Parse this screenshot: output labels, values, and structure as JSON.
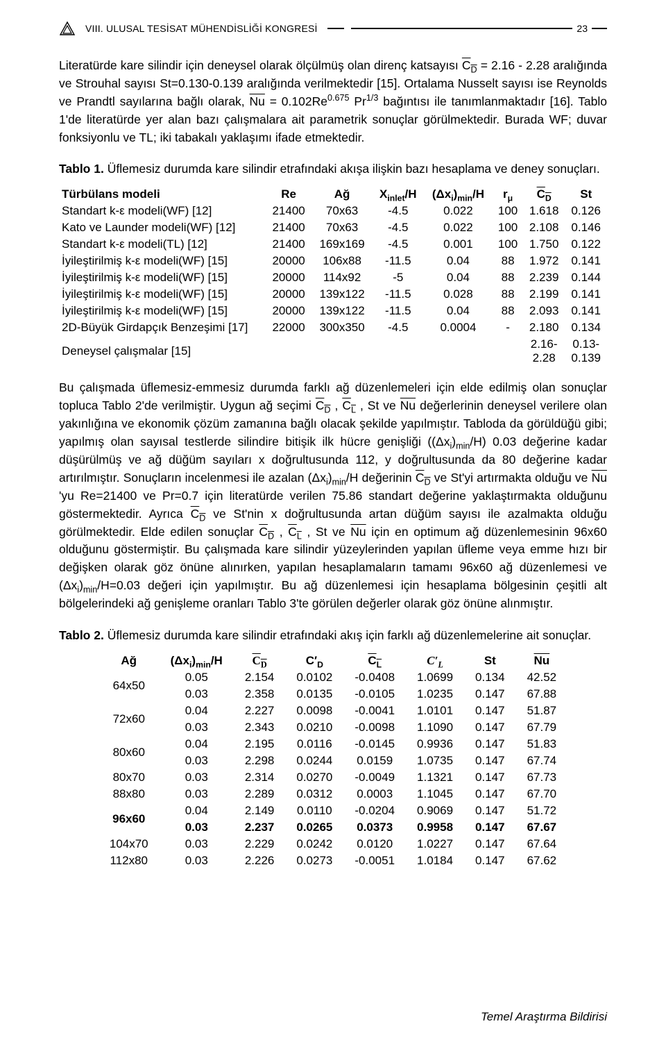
{
  "header": {
    "title": "VIII. ULUSAL TESİSAT MÜHENDİSLİĞİ KONGRESİ",
    "page_number": "23"
  },
  "para1_parts": {
    "a": "Literatürde kare silindir için deneysel olarak ölçülmüş olan direnç katsayısı ",
    "cd": "C",
    "cd_sub": "D",
    "b": " = 2.16 - 2.28 aralığında ve Strouhal sayısı St=0.130-0.139 aralığında verilmektedir [15]. Ortalama Nusselt sayısı ise Reynolds ve Prandtl sayılarına bağlı olarak, ",
    "nu": "Nu",
    "c": " = 0.102Re",
    "exp1": "0.675",
    "pr": " Pr",
    "exp2": "1/3",
    "d": " bağıntısı ile tanımlanmaktadır [16]. Tablo 1'de literatürde yer alan bazı çalışmalara ait parametrik sonuçlar görülmektedir. Burada WF; duvar fonksiyonlu ve TL; iki tabakalı yaklaşımı ifade etmektedir."
  },
  "table1": {
    "caption_bold": "Tablo 1.",
    "caption_rest": " Üflemesiz durumda kare silindir etrafındaki akışa ilişkin bazı hesaplama ve deney sonuçları.",
    "columns": {
      "model": "Türbülans modeli",
      "re": "Re",
      "ag": "Ağ",
      "xinlet_a": "X",
      "xinlet_sub": "inlet",
      "xinlet_b": "/H",
      "dx_a": "(Δx",
      "dx_sub": "i",
      "dx_b": ")",
      "dx_sub2": "min",
      "dx_c": "/H",
      "rmu_a": "r",
      "rmu_sub": "μ",
      "cd_a": "C",
      "cd_sub": "D",
      "st": "St"
    },
    "rows": [
      {
        "m": "Standart k-ε modeli(WF) [12]",
        "re": "21400",
        "ag": "70x63",
        "xin": "-4.5",
        "dx": "0.022",
        "rmu": "100",
        "cd": "1.618",
        "st": "0.126"
      },
      {
        "m": "Kato ve Launder modeli(WF) [12]",
        "re": "21400",
        "ag": "70x63",
        "xin": "-4.5",
        "dx": "0.022",
        "rmu": "100",
        "cd": "2.108",
        "st": "0.146"
      },
      {
        "m": "Standart k-ε modeli(TL) [12]",
        "re": "21400",
        "ag": "169x169",
        "xin": "-4.5",
        "dx": "0.001",
        "rmu": "100",
        "cd": "1.750",
        "st": "0.122"
      },
      {
        "m": "İyileştirilmiş k-ε modeli(WF) [15]",
        "re": "20000",
        "ag": "106x88",
        "xin": "-11.5",
        "dx": "0.04",
        "rmu": "88",
        "cd": "1.972",
        "st": "0.141"
      },
      {
        "m": "İyileştirilmiş k-ε modeli(WF) [15]",
        "re": "20000",
        "ag": "114x92",
        "xin": "-5",
        "dx": "0.04",
        "rmu": "88",
        "cd": "2.239",
        "st": "0.144"
      },
      {
        "m": "İyileştirilmiş k-ε modeli(WF) [15]",
        "re": "20000",
        "ag": "139x122",
        "xin": "-11.5",
        "dx": "0.028",
        "rmu": "88",
        "cd": "2.199",
        "st": "0.141"
      },
      {
        "m": "İyileştirilmiş k-ε modeli(WF) [15]",
        "re": "20000",
        "ag": "139x122",
        "xin": "-11.5",
        "dx": "0.04",
        "rmu": "88",
        "cd": "2.093",
        "st": "0.141"
      },
      {
        "m": "2D-Büyük Girdapçık Benzeşimi [17]",
        "re": "22000",
        "ag": "300x350",
        "xin": "-4.5",
        "dx": "0.0004",
        "rmu": "-",
        "cd": "2.180",
        "st": "0.134"
      },
      {
        "m": "Deneysel çalışmalar [15]",
        "re": "",
        "ag": "",
        "xin": "",
        "dx": "",
        "rmu": "",
        "cd": "2.16-\n2.28",
        "st": "0.13-\n0.139"
      }
    ]
  },
  "para2_parts": {
    "a": "Bu çalışmada üflemesiz-emmesiz durumda farklı ağ düzenlemeleri için elde edilmiş olan sonuçlar topluca Tablo 2'de verilmiştir. Uygun ağ seçimi ",
    "b": " , ",
    "c": " , St ve ",
    "d": " değerlerinin deneysel verilere olan yakınlığına ve ekonomik çözüm zamanına bağlı olacak şekilde yapılmıştır. Tabloda da görüldüğü gibi; yapılmış olan sayısal testlerde silindire bitişik ilk hücre genişliği ((Δx",
    "d_sub": "i",
    "d2": ")",
    "d_sub2": "min",
    "d3": "/H) 0.03 değerine kadar düşürülmüş ve ağ düğüm sayıları x doğrultusunda 112, y doğrultusunda da 80 değerine kadar artırılmıştır. Sonuçların incelenmesi ile azalan (Δx",
    "e_sub": "i",
    "e2": ")",
    "e_sub2": "min",
    "e3": "/H değerinin ",
    "f": " ve St'yi artırmakta olduğu ve ",
    "g": " 'yu Re=21400 ve Pr=0.7 için literatürde verilen 75.86 standart değerine yaklaştırmakta olduğunu göstermektedir. Ayrıca ",
    "h": " ve St'nin x doğrultusunda artan düğüm sayısı ile azalmakta olduğu görülmektedir. Elde edilen sonuçlar ",
    "i": " , ",
    "j": " , St ve ",
    "k": " için en optimum ağ düzenlemesinin 96x60 olduğunu göstermiştir. Bu çalışmada kare silindir yüzeylerinden yapılan üfleme veya emme hızı bir değişken olarak göz önüne alınırken, yapılan hesaplamaların tamamı 96x60 ağ düzenlemesi ve (Δx",
    "k_sub": "i",
    "k2": ")",
    "k_sub2": "min",
    "k3": "/H=0.03 değeri için yapılmıştır. Bu ağ düzenlemesi için hesaplama bölgesinin çeşitli alt bölgelerindeki ağ genişleme oranları Tablo 3'te görülen değerler olarak göz önüne alınmıştır.",
    "cd": "C",
    "cd_sub": "D",
    "cl": "C",
    "cl_sub": "L",
    "nu": "Nu"
  },
  "table2": {
    "caption_bold": "Tablo 2.",
    "caption_rest": " Üflemesiz durumda kare silindir etrafındaki akış için farklı ağ düzenlemelerine ait sonuçlar.",
    "columns": {
      "ag": "Ağ",
      "dx_a": "(Δx",
      "dx_sub": "i",
      "dx_b": ")",
      "dx_sub2": "min",
      "dx_c": "/H",
      "cd": "C",
      "cd_sub": "D",
      "cdp": "C′",
      "cdp_sub": "D",
      "cl": "C",
      "cl_sub": "L",
      "clp": "C′",
      "clp_sub": "L",
      "st": "St",
      "nu": "Nu"
    },
    "rows": [
      {
        "ag": "64x50",
        "dx": "0.05",
        "cd": "2.154",
        "cdp": "0.0102",
        "cl": "-0.0408",
        "clp": "1.0699",
        "st": "0.134",
        "nu": "42.52",
        "bold": false,
        "span": 2
      },
      {
        "ag": "",
        "dx": "0.03",
        "cd": "2.358",
        "cdp": "0.0135",
        "cl": "-0.0105",
        "clp": "1.0235",
        "st": "0.147",
        "nu": "67.88",
        "bold": false,
        "span": 0
      },
      {
        "ag": "72x60",
        "dx": "0.04",
        "cd": "2.227",
        "cdp": "0.0098",
        "cl": "-0.0041",
        "clp": "1.0101",
        "st": "0.147",
        "nu": "51.87",
        "bold": false,
        "span": 2
      },
      {
        "ag": "",
        "dx": "0.03",
        "cd": "2.343",
        "cdp": "0.0210",
        "cl": "-0.0098",
        "clp": "1.1090",
        "st": "0.147",
        "nu": "67.79",
        "bold": false,
        "span": 0
      },
      {
        "ag": "80x60",
        "dx": "0.04",
        "cd": "2.195",
        "cdp": "0.0116",
        "cl": "-0.0145",
        "clp": "0.9936",
        "st": "0.147",
        "nu": "51.83",
        "bold": false,
        "span": 2
      },
      {
        "ag": "",
        "dx": "0.03",
        "cd": "2.298",
        "cdp": "0.0244",
        "cl": "0.0159",
        "clp": "1.0735",
        "st": "0.147",
        "nu": "67.74",
        "bold": false,
        "span": 0
      },
      {
        "ag": "80x70",
        "dx": "0.03",
        "cd": "2.314",
        "cdp": "0.0270",
        "cl": "-0.0049",
        "clp": "1.1321",
        "st": "0.147",
        "nu": "67.73",
        "bold": false,
        "span": 1
      },
      {
        "ag": "88x80",
        "dx": "0.03",
        "cd": "2.289",
        "cdp": "0.0312",
        "cl": "0.0003",
        "clp": "1.1045",
        "st": "0.147",
        "nu": "67.70",
        "bold": false,
        "span": 1
      },
      {
        "ag": "96x60",
        "dx": "0.04",
        "cd": "2.149",
        "cdp": "0.0110",
        "cl": "-0.0204",
        "clp": "0.9069",
        "st": "0.147",
        "nu": "51.72",
        "bold": false,
        "span": 2
      },
      {
        "ag": "",
        "dx": "0.03",
        "cd": "2.237",
        "cdp": "0.0265",
        "cl": "0.0373",
        "clp": "0.9958",
        "st": "0.147",
        "nu": "67.67",
        "bold": true,
        "span": 0
      },
      {
        "ag": "104x70",
        "dx": "0.03",
        "cd": "2.229",
        "cdp": "0.0242",
        "cl": "0.0120",
        "clp": "1.0227",
        "st": "0.147",
        "nu": "67.64",
        "bold": false,
        "span": 1
      },
      {
        "ag": "112x80",
        "dx": "0.03",
        "cd": "2.226",
        "cdp": "0.0273",
        "cl": "-0.0051",
        "clp": "1.0184",
        "st": "0.147",
        "nu": "67.62",
        "bold": false,
        "span": 1
      }
    ]
  },
  "footer": "Temel Araştırma Bildirisi"
}
